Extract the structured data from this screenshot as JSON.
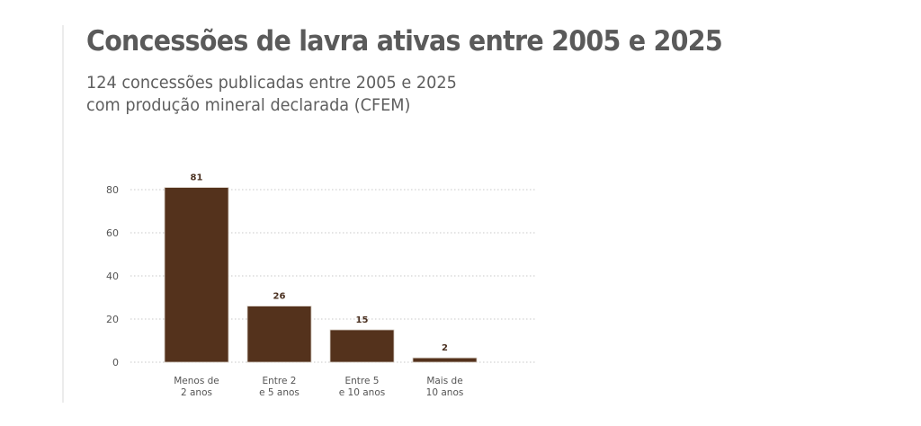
{
  "header": {
    "title": "Concessões de lavra ativas entre 2005 e 2025",
    "subtitle_lines": [
      "124 concessões publicadas entre 2005 e 2025",
      "com produção mineral declarada (CFEM)"
    ]
  },
  "chart_data": {
    "type": "bar",
    "title": "Concessões de lavra ativas entre 2005 e 2025",
    "subtitle": "124 concessões publicadas entre 2005 e 2025 com produção mineral declarada (CFEM)",
    "categories": [
      [
        "Menos de",
        "2 anos"
      ],
      [
        "Entre 2",
        "e 5 anos"
      ],
      [
        "Entre 5",
        "e 10 anos"
      ],
      [
        "Mais de",
        "10 anos"
      ]
    ],
    "values": [
      81,
      26,
      15,
      2
    ],
    "data_labels": [
      "81",
      "26",
      "15",
      "2"
    ],
    "xlabel": "",
    "ylabel": "",
    "ylim": [
      0,
      80
    ],
    "yticks": [
      0,
      20,
      40,
      60,
      80
    ],
    "grid": true,
    "grid_style": "dotted",
    "legend": "none",
    "colors": {
      "bar": "#54321c",
      "bar_stroke": "#d8cfc6",
      "grid": "#c8c8c8",
      "value_label": "#4a3020"
    }
  }
}
